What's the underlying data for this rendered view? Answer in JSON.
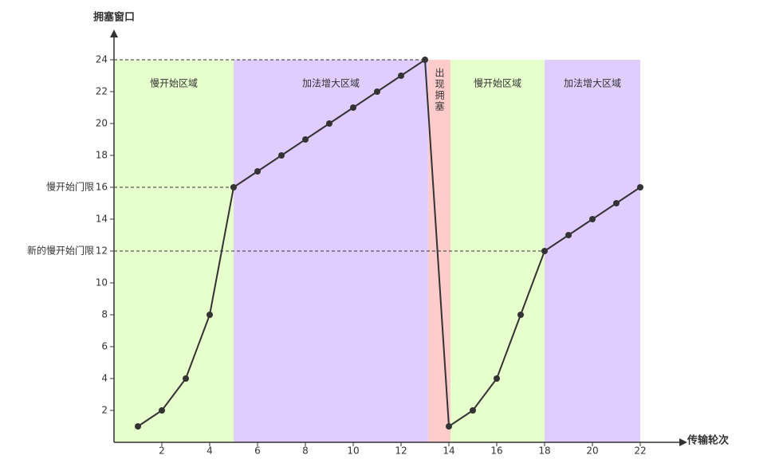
{
  "chart_data": {
    "type": "line",
    "y_label": "拥塞窗口",
    "x_label": "传输轮次",
    "x": [
      1,
      2,
      3,
      4,
      5,
      6,
      7,
      8,
      9,
      10,
      11,
      12,
      13,
      14,
      15,
      16,
      17,
      18,
      19,
      20,
      21,
      22
    ],
    "series": [
      {
        "name": "拥塞窗口",
        "color": "#333333",
        "values": [
          1,
          2,
          4,
          8,
          16,
          17,
          18,
          19,
          20,
          21,
          22,
          23,
          24,
          1,
          2,
          4,
          8,
          12,
          13,
          14,
          15,
          16
        ]
      }
    ],
    "xlim": [
      0,
      23.7
    ],
    "ylim": [
      0,
      25.5
    ],
    "xticks": [
      2,
      4,
      6,
      8,
      10,
      12,
      14,
      16,
      18,
      20,
      22
    ],
    "yticks": [
      2,
      4,
      6,
      8,
      10,
      12,
      14,
      16,
      18,
      20,
      22,
      24
    ],
    "regions": [
      {
        "label": "慢开始区域",
        "start": 0,
        "end": 5,
        "top": 24,
        "color": "#e6ffcc"
      },
      {
        "label": "加法增大区域",
        "start": 5,
        "end": 13.13,
        "top": 24,
        "color": "#e0ccff"
      },
      {
        "label": "出现拥塞",
        "start": 13.13,
        "end": 14.07,
        "top": 24,
        "color": "#ffcccc",
        "vertical": true
      },
      {
        "label": "慢开始区域",
        "start": 14.07,
        "end": 18,
        "top": 24,
        "color": "#e6ffcc"
      },
      {
        "label": "加法增大区域",
        "start": 18,
        "end": 22,
        "top": 24,
        "color": "#e0ccff"
      }
    ],
    "thresholds": [
      {
        "label": "慢开始门限",
        "value": 16,
        "x": 5
      },
      {
        "label": "新的慢开始门限",
        "value": 12,
        "x": 18
      }
    ],
    "peak": {
      "value": 24,
      "x": 13
    }
  }
}
